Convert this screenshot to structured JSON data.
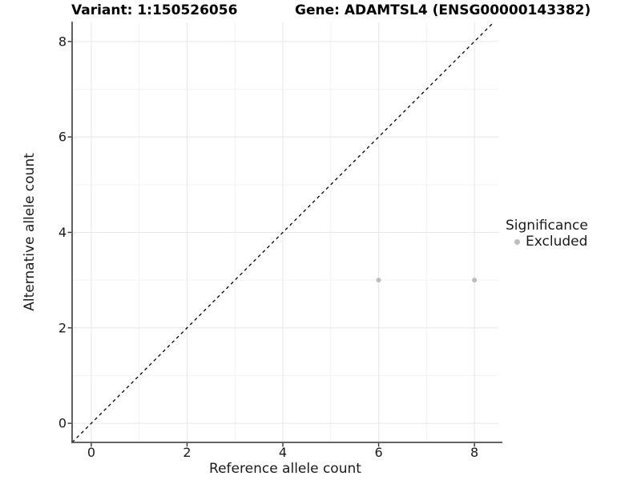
{
  "chart_data": {
    "type": "scatter",
    "titles": {
      "left": "Variant: 1:150526056",
      "right": "Gene: ADAMTSL4 (ENSG00000143382)"
    },
    "xlabel": "Reference allele count",
    "ylabel": "Alternative allele count",
    "xlim": [
      -0.4,
      8.5
    ],
    "ylim": [
      -0.4,
      8.4
    ],
    "x_major_ticks": [
      0,
      2,
      4,
      6,
      8
    ],
    "y_major_ticks": [
      0,
      2,
      4,
      6,
      8
    ],
    "x_minor_gridlines": [
      1,
      3,
      5,
      7
    ],
    "y_minor_gridlines": [
      1,
      3,
      5,
      7
    ],
    "grid": "major+minor",
    "identity_line": {
      "equation": "y = x",
      "style": "dashed",
      "color": "#000000"
    },
    "series": [
      {
        "name": "Excluded",
        "color": "#bdbdbd",
        "points": [
          {
            "x": 6,
            "y": 3
          },
          {
            "x": 8,
            "y": 3
          }
        ]
      }
    ],
    "legend": {
      "title": "Significance",
      "position": "right",
      "entries": [
        {
          "label": "Excluded",
          "color": "#bdbdbd",
          "marker": "circle"
        }
      ]
    },
    "colors": {
      "background": "#ffffff",
      "grid_major": "#e8e8e8",
      "grid_minor": "#f3f3f3",
      "axis_line": "#4f4f4f",
      "tick_mark": "#333333",
      "tick_text": "#1a1a1a",
      "title_text": "#000000"
    }
  }
}
